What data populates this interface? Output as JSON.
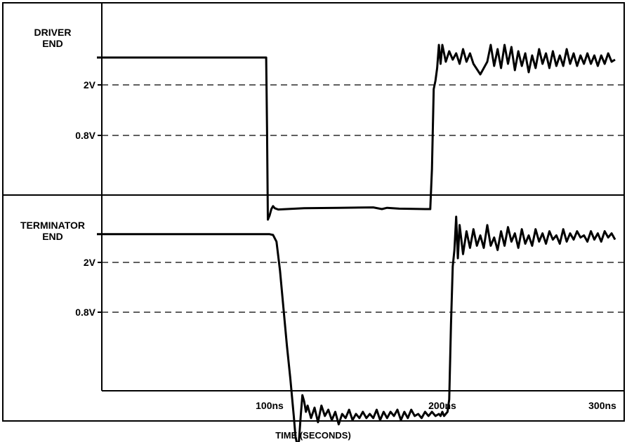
{
  "chart_data": [
    {
      "type": "line",
      "panel_label_lines": [
        "DRIVER",
        "END"
      ],
      "ytick_labels": [
        "2V",
        "0.8V"
      ],
      "ytick_values": [
        2.0,
        0.8
      ],
      "xlim": [
        0,
        300
      ],
      "ylim": [
        -1.3,
        4.0
      ],
      "grid": "dashed horizontal at 2V and 0.8V",
      "series": [
        {
          "x": [
            0,
            98,
            98.5,
            99,
            100,
            101,
            102,
            103,
            105,
            110,
            120,
            140,
            160,
            165,
            168,
            175,
            190,
            193,
            194,
            195,
            196,
            197,
            198,
            199,
            200,
            202,
            204,
            206,
            208,
            210,
            212,
            214,
            216,
            218,
            222,
            226,
            228,
            230,
            232,
            234,
            236,
            238,
            240,
            242,
            244,
            246,
            248,
            250,
            252,
            254,
            256,
            258,
            260,
            262,
            264,
            266,
            268,
            270,
            272,
            274,
            276,
            278,
            280,
            282,
            284,
            286,
            288,
            290,
            292,
            294,
            296,
            298,
            300
          ],
          "y": [
            2.65,
            2.65,
            1.0,
            -1.2,
            -1.1,
            -0.95,
            -0.88,
            -0.93,
            -0.96,
            -0.95,
            -0.93,
            -0.92,
            -0.91,
            -0.95,
            -0.92,
            -0.94,
            -0.95,
            -0.95,
            0.0,
            1.9,
            2.1,
            2.4,
            2.95,
            2.5,
            2.95,
            2.55,
            2.8,
            2.6,
            2.75,
            2.5,
            2.85,
            2.55,
            2.75,
            2.5,
            2.25,
            2.55,
            2.95,
            2.45,
            2.85,
            2.4,
            2.95,
            2.5,
            2.9,
            2.35,
            2.8,
            2.45,
            2.75,
            2.3,
            2.7,
            2.4,
            2.85,
            2.5,
            2.75,
            2.4,
            2.8,
            2.45,
            2.7,
            2.45,
            2.85,
            2.5,
            2.75,
            2.45,
            2.7,
            2.5,
            2.75,
            2.5,
            2.7,
            2.45,
            2.7,
            2.5,
            2.75,
            2.55,
            2.6
          ]
        }
      ]
    },
    {
      "type": "line",
      "panel_label_lines": [
        "TERMINATOR",
        "END"
      ],
      "ytick_labels": [
        "2V",
        "0.8V"
      ],
      "ytick_values": [
        2.0,
        0.8
      ],
      "xlim": [
        0,
        300
      ],
      "ylim": [
        -2.6,
        3.0
      ],
      "grid": "dashed horizontal at 2V and 0.8V",
      "series": [
        {
          "x": [
            0,
            100,
            102,
            104,
            106,
            108,
            110,
            112,
            114,
            115,
            116,
            117,
            118,
            119,
            120,
            121,
            122,
            124,
            126,
            128,
            130,
            132,
            134,
            136,
            138,
            140,
            142,
            144,
            146,
            148,
            150,
            152,
            154,
            156,
            158,
            160,
            162,
            164,
            166,
            168,
            170,
            172,
            174,
            176,
            178,
            180,
            182,
            184,
            186,
            188,
            190,
            192,
            194,
            196,
            198,
            199,
            200,
            201,
            202,
            203,
            204,
            205,
            206,
            207,
            208,
            209,
            210,
            212,
            214,
            216,
            218,
            220,
            222,
            224,
            226,
            228,
            230,
            232,
            234,
            236,
            238,
            240,
            242,
            244,
            246,
            248,
            250,
            252,
            254,
            256,
            258,
            260,
            262,
            264,
            266,
            268,
            270,
            272,
            274,
            276,
            278,
            280,
            282,
            284,
            286,
            288,
            290,
            292,
            294,
            296,
            298,
            300
          ],
          "y": [
            2.68,
            2.68,
            2.66,
            2.5,
            1.8,
            0.9,
            0.0,
            -0.8,
            -1.7,
            -2.2,
            -2.4,
            -2.3,
            -1.7,
            -1.2,
            -1.35,
            -1.6,
            -1.45,
            -1.75,
            -1.5,
            -1.85,
            -1.45,
            -1.7,
            -1.55,
            -1.8,
            -1.6,
            -1.9,
            -1.65,
            -1.75,
            -1.55,
            -1.8,
            -1.65,
            -1.75,
            -1.6,
            -1.75,
            -1.65,
            -1.75,
            -1.55,
            -1.8,
            -1.6,
            -1.75,
            -1.6,
            -1.7,
            -1.55,
            -1.8,
            -1.6,
            -1.75,
            -1.55,
            -1.7,
            -1.65,
            -1.75,
            -1.6,
            -1.7,
            -1.6,
            -1.7,
            -1.65,
            -1.7,
            -1.6,
            -1.7,
            -1.65,
            -1.6,
            -1.3,
            0.5,
            1.9,
            2.3,
            3.1,
            2.1,
            2.9,
            2.2,
            2.75,
            2.35,
            2.8,
            2.4,
            2.65,
            2.35,
            2.9,
            2.4,
            2.6,
            2.3,
            2.75,
            2.4,
            2.85,
            2.5,
            2.7,
            2.35,
            2.8,
            2.45,
            2.65,
            2.4,
            2.8,
            2.5,
            2.7,
            2.45,
            2.75,
            2.55,
            2.65,
            2.45,
            2.8,
            2.5,
            2.7,
            2.55,
            2.75,
            2.6,
            2.65,
            2.5,
            2.75,
            2.55,
            2.7,
            2.5,
            2.75,
            2.6,
            2.7,
            2.55
          ]
        }
      ]
    }
  ],
  "shared_axis": {
    "xtick_values": [
      100,
      200,
      300
    ],
    "xtick_labels": [
      "100ns",
      "200ns",
      "300ns"
    ],
    "xlabel": "TIME (SECONDS)"
  }
}
